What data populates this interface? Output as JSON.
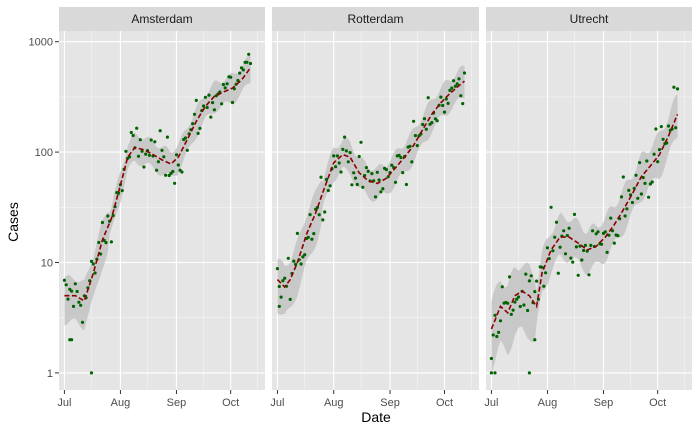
{
  "chart_data": {
    "type": "line",
    "facet_layout": "1 row x 3 panels",
    "xlabel": "Date",
    "ylabel": "Cases",
    "y_scale": "log10",
    "ylim": [
      0.7,
      1250
    ],
    "y_ticks": [
      1,
      10,
      100,
      1000
    ],
    "y_tick_labels": [
      "1",
      "10",
      "100",
      "1000"
    ],
    "x_range": [
      "2020-06-28",
      "2020-10-20"
    ],
    "x_ticks": [
      "2020-07-01",
      "2020-08-01",
      "2020-09-01",
      "2020-10-01"
    ],
    "x_tick_labels": [
      "Jul",
      "Aug",
      "Sep",
      "Oct"
    ],
    "grid": true,
    "legend": "none",
    "colors": {
      "panel_bg": "#e5e5e5",
      "strip_bg": "#d9d9d9",
      "grid": "#ffffff",
      "ribbon": "#bdbdbd",
      "line": "#8b0000",
      "points": "#006400",
      "text": "#4d4d4d"
    },
    "panels": [
      {
        "name": "Amsterdam",
        "start": "2020-07-01",
        "end": "2020-10-12",
        "trend_anchors": [
          [
            "2020-07-01",
            5
          ],
          [
            "2020-07-07",
            5
          ],
          [
            "2020-07-12",
            4.5
          ],
          [
            "2020-07-17",
            8
          ],
          [
            "2020-07-22",
            16
          ],
          [
            "2020-07-27",
            25
          ],
          [
            "2020-08-01",
            50
          ],
          [
            "2020-08-05",
            90
          ],
          [
            "2020-08-09",
            110
          ],
          [
            "2020-08-14",
            105
          ],
          [
            "2020-08-19",
            95
          ],
          [
            "2020-08-24",
            85
          ],
          [
            "2020-08-29",
            78
          ],
          [
            "2020-09-02",
            90
          ],
          [
            "2020-09-07",
            130
          ],
          [
            "2020-09-12",
            190
          ],
          [
            "2020-09-17",
            260
          ],
          [
            "2020-09-22",
            320
          ],
          [
            "2020-09-27",
            350
          ],
          [
            "2020-10-02",
            380
          ],
          [
            "2020-10-07",
            450
          ],
          [
            "2020-10-12",
            580
          ]
        ],
        "ribbon_factor": [
          0.75,
          1.3
        ],
        "noise": 0.3,
        "outliers": [
          [
            "2020-07-04",
            2
          ],
          [
            "2020-07-05",
            2
          ],
          [
            "2020-07-16",
            1
          ]
        ]
      },
      {
        "name": "Rotterdam",
        "start": "2020-07-01",
        "end": "2020-10-12",
        "trend_anchors": [
          [
            "2020-07-01",
            7
          ],
          [
            "2020-07-05",
            6
          ],
          [
            "2020-07-08",
            7
          ],
          [
            "2020-07-12",
            10
          ],
          [
            "2020-07-17",
            18
          ],
          [
            "2020-07-22",
            28
          ],
          [
            "2020-07-27",
            48
          ],
          [
            "2020-08-01",
            80
          ],
          [
            "2020-08-06",
            95
          ],
          [
            "2020-08-10",
            90
          ],
          [
            "2020-08-15",
            65
          ],
          [
            "2020-08-20",
            55
          ],
          [
            "2020-08-25",
            52
          ],
          [
            "2020-08-30",
            58
          ],
          [
            "2020-09-04",
            72
          ],
          [
            "2020-09-09",
            90
          ],
          [
            "2020-09-14",
            115
          ],
          [
            "2020-09-19",
            160
          ],
          [
            "2020-09-24",
            220
          ],
          [
            "2020-09-29",
            280
          ],
          [
            "2020-10-04",
            340
          ],
          [
            "2020-10-09",
            400
          ],
          [
            "2020-10-12",
            440
          ]
        ],
        "ribbon_factor": [
          0.72,
          1.35
        ],
        "noise": 0.3,
        "outliers": [
          [
            "2020-07-02",
            4
          ]
        ]
      },
      {
        "name": "Utrecht",
        "start": "2020-07-01",
        "end": "2020-10-12",
        "trend_anchors": [
          [
            "2020-07-01",
            2.5
          ],
          [
            "2020-07-03",
            3
          ],
          [
            "2020-07-06",
            4
          ],
          [
            "2020-07-10",
            3.5
          ],
          [
            "2020-07-14",
            5
          ],
          [
            "2020-07-18",
            5.5
          ],
          [
            "2020-07-22",
            5
          ],
          [
            "2020-07-26",
            4
          ],
          [
            "2020-07-29",
            8
          ],
          [
            "2020-08-03",
            13
          ],
          [
            "2020-08-08",
            17
          ],
          [
            "2020-08-13",
            17
          ],
          [
            "2020-08-18",
            15
          ],
          [
            "2020-08-23",
            13
          ],
          [
            "2020-08-28",
            14
          ],
          [
            "2020-09-02",
            17
          ],
          [
            "2020-09-07",
            22
          ],
          [
            "2020-09-12",
            30
          ],
          [
            "2020-09-17",
            42
          ],
          [
            "2020-09-22",
            60
          ],
          [
            "2020-09-27",
            75
          ],
          [
            "2020-10-02",
            95
          ],
          [
            "2020-10-07",
            140
          ],
          [
            "2020-10-12",
            220
          ]
        ],
        "ribbon_factor": [
          0.65,
          1.5
        ],
        "noise": 0.4,
        "outliers": [
          [
            "2020-07-01",
            1
          ],
          [
            "2020-07-03",
            1
          ],
          [
            "2020-07-22",
            1
          ],
          [
            "2020-07-25",
            2
          ]
        ]
      }
    ]
  }
}
